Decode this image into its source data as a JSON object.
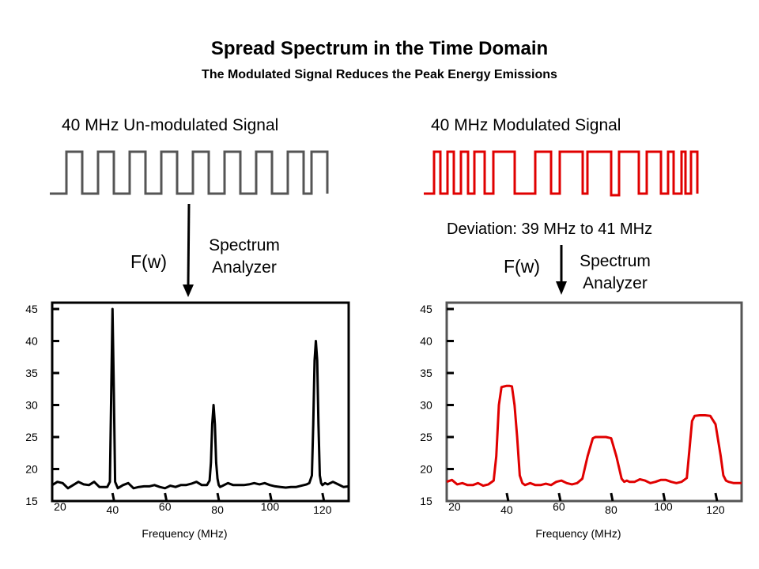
{
  "title": "Spread Spectrum in the Time Domain",
  "subtitle": "The Modulated Signal Reduces the Peak Energy Emissions",
  "left_signal_label": "40 MHz Un-modulated Signal",
  "right_signal_label": "40 MHz Modulated Signal",
  "deviation_label": "Deviation: 39 MHz to 41 MHz",
  "transform_label": "F(w)",
  "analyzer_line1": "Spectrum",
  "analyzer_line2": "Analyzer",
  "colors": {
    "unmodulated": "#555555",
    "modulated": "#e00000",
    "left_trace": "#000000",
    "right_trace": "#e00000"
  },
  "chart_data": [
    {
      "type": "line",
      "name": "unmodulated-spectrum",
      "xlabel": "Frequency (MHz)",
      "ylabel": "",
      "x_ticks": [
        "20",
        "40",
        "60",
        "80",
        "100",
        "120"
      ],
      "y_ticks": [
        "15",
        "20",
        "25",
        "30",
        "35",
        "40",
        "45"
      ],
      "xlim": [
        17,
        130
      ],
      "ylim": [
        15,
        45
      ],
      "x": [
        17,
        19,
        21,
        23,
        25,
        27,
        29,
        31,
        33,
        35,
        37,
        38,
        39,
        39.5,
        40,
        40.5,
        41,
        42,
        44,
        46,
        48,
        50,
        52,
        54,
        56,
        58,
        60,
        62,
        64,
        66,
        68,
        70,
        72,
        74,
        76,
        77,
        77.5,
        78,
        78.5,
        79,
        79.5,
        80,
        80.5,
        81,
        82,
        84,
        86,
        88,
        90,
        92,
        94,
        96,
        98,
        100,
        102,
        104,
        106,
        108,
        110,
        112,
        114,
        115,
        116,
        116.5,
        117,
        117.5,
        118,
        118.5,
        119,
        119.5,
        120,
        121,
        122,
        124,
        126,
        128,
        130
      ],
      "y": [
        17.5,
        18,
        17.8,
        17,
        17.5,
        18,
        17.6,
        17.5,
        18,
        17.2,
        17.2,
        17.2,
        18,
        32,
        45,
        32,
        18,
        17,
        17.5,
        17.8,
        17,
        17.2,
        17.3,
        17.3,
        17.5,
        17.2,
        17,
        17.4,
        17.2,
        17.5,
        17.5,
        17.7,
        18,
        17.5,
        17.5,
        18.2,
        21,
        27,
        30,
        27,
        21,
        18.5,
        17.5,
        17.2,
        17.4,
        17.8,
        17.5,
        17.5,
        17.5,
        17.6,
        17.8,
        17.6,
        17.8,
        17.5,
        17.3,
        17.2,
        17.1,
        17.2,
        17.2,
        17.4,
        17.6,
        17.8,
        19,
        27,
        37,
        40,
        37,
        27,
        19,
        17.8,
        17.5,
        17.8,
        17.6,
        18,
        17.6,
        17.2,
        17.3
      ],
      "series_name": "Un-modulated"
    },
    {
      "type": "line",
      "name": "modulated-spectrum",
      "xlabel": "Frequency (MHz)",
      "ylabel": "",
      "x_ticks": [
        "20",
        "40",
        "60",
        "80",
        "100",
        "120"
      ],
      "y_ticks": [
        "15",
        "20",
        "25",
        "30",
        "35",
        "40",
        "45"
      ],
      "xlim": [
        17,
        130
      ],
      "ylim": [
        15,
        45
      ],
      "x": [
        17,
        19,
        21,
        23,
        25,
        27,
        29,
        31,
        33,
        35,
        36,
        37,
        38,
        39,
        40,
        41,
        42,
        43,
        44,
        45,
        46,
        47,
        49,
        51,
        53,
        55,
        57,
        59,
        61,
        63,
        65,
        67,
        69,
        71,
        73,
        74,
        75,
        76,
        78,
        80,
        82,
        84,
        85,
        86,
        87,
        89,
        91,
        93,
        95,
        97,
        99,
        101,
        103,
        105,
        107,
        109,
        110,
        111,
        112,
        114,
        116,
        118,
        120,
        122,
        123,
        124,
        125,
        127,
        129,
        130
      ],
      "y": [
        18,
        18.3,
        17.6,
        17.8,
        17.5,
        17.5,
        17.8,
        17.4,
        17.6,
        18.2,
        22,
        30,
        32.8,
        32.9,
        33,
        33,
        32.9,
        30,
        25,
        19,
        17.8,
        17.5,
        17.8,
        17.5,
        17.5,
        17.7,
        17.5,
        18,
        18.2,
        17.8,
        17.6,
        17.8,
        18.5,
        22,
        24.8,
        25,
        25,
        25,
        25,
        24.8,
        22,
        18.5,
        18,
        18.2,
        18,
        18,
        18.4,
        18.2,
        17.8,
        18,
        18.3,
        18.3,
        18,
        17.8,
        18,
        18.6,
        23,
        27.5,
        28.3,
        28.4,
        28.4,
        28.3,
        27,
        22,
        19,
        18.2,
        18,
        17.8,
        17.8,
        17.8
      ],
      "series_name": "Modulated"
    }
  ]
}
